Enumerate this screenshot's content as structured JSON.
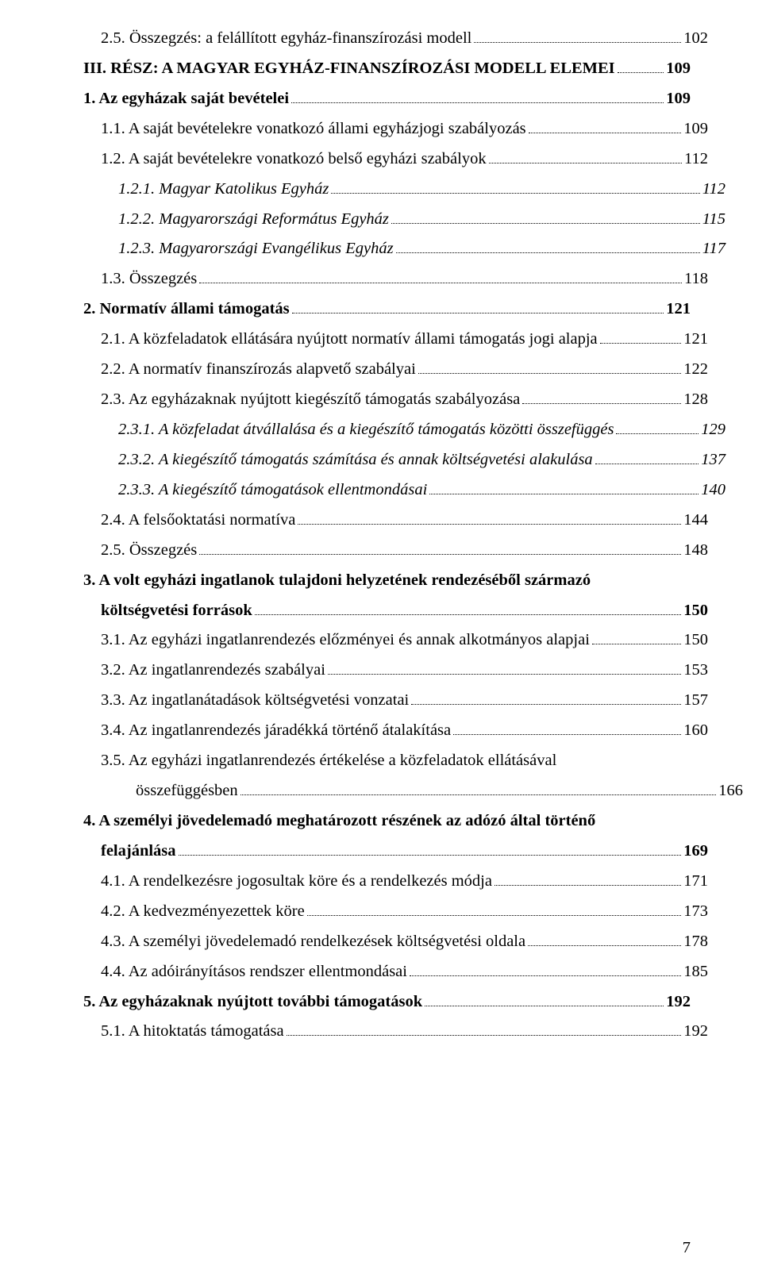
{
  "pageNumber": "7",
  "entries": [
    {
      "indent": 1,
      "bold": false,
      "italic": false,
      "text": "2.5. Összegzés: a felállított egyház-finanszírozási modell",
      "page": "102"
    },
    {
      "indent": 0,
      "bold": true,
      "italic": false,
      "text": "III. RÉSZ: A MAGYAR EGYHÁZ-FINANSZÍROZÁSI MODELL ELEMEI",
      "page": "109"
    },
    {
      "indent": 0,
      "bold": true,
      "italic": false,
      "text": "1. Az egyházak saját bevételei",
      "page": "109"
    },
    {
      "indent": 1,
      "bold": false,
      "italic": false,
      "text": "1.1. A saját bevételekre vonatkozó állami egyházjogi szabályozás",
      "page": "109"
    },
    {
      "indent": 1,
      "bold": false,
      "italic": false,
      "text": "1.2. A saját bevételekre vonatkozó belső egyházi szabályok",
      "page": "112"
    },
    {
      "indent": 2,
      "bold": false,
      "italic": true,
      "text": "1.2.1. Magyar Katolikus Egyház",
      "page": "112"
    },
    {
      "indent": 2,
      "bold": false,
      "italic": true,
      "text": "1.2.2. Magyarországi Református Egyház",
      "page": "115"
    },
    {
      "indent": 2,
      "bold": false,
      "italic": true,
      "text": "1.2.3. Magyarországi Evangélikus Egyház",
      "page": "117"
    },
    {
      "indent": 1,
      "bold": false,
      "italic": false,
      "text": "1.3. Összegzés",
      "page": "118"
    },
    {
      "indent": 0,
      "bold": true,
      "italic": false,
      "text": "2. Normatív állami támogatás",
      "page": "121"
    },
    {
      "indent": 1,
      "bold": false,
      "italic": false,
      "text": "2.1. A közfeladatok ellátására nyújtott normatív állami támogatás jogi alapja",
      "page": "121"
    },
    {
      "indent": 1,
      "bold": false,
      "italic": false,
      "text": "2.2. A normatív finanszírozás alapvető szabályai",
      "page": "122"
    },
    {
      "indent": 1,
      "bold": false,
      "italic": false,
      "text": "2.3. Az egyházaknak nyújtott kiegészítő támogatás szabályozása",
      "page": "128"
    },
    {
      "indent": 2,
      "bold": false,
      "italic": true,
      "text": "2.3.1. A közfeladat átvállalása és a kiegészítő támogatás közötti összefüggés",
      "page": "129"
    },
    {
      "indent": 2,
      "bold": false,
      "italic": true,
      "text": "2.3.2. A kiegészítő támogatás számítása és annak költségvetési alakulása",
      "page": "137"
    },
    {
      "indent": 2,
      "bold": false,
      "italic": true,
      "text": "2.3.3. A kiegészítő támogatások ellentmondásai",
      "page": "140"
    },
    {
      "indent": 1,
      "bold": false,
      "italic": false,
      "text": "2.4. A felsőoktatási normatíva",
      "page": "144"
    },
    {
      "indent": 1,
      "bold": false,
      "italic": false,
      "text": "2.5. Összegzés",
      "page": "148"
    },
    {
      "indent": 0,
      "bold": true,
      "italic": false,
      "wrap": true,
      "pre": "3. A volt egyházi ingatlanok tulajdoni helyzetének rendezéséből származó",
      "text": "költségvetési források",
      "page": "150"
    },
    {
      "indent": 1,
      "bold": false,
      "italic": false,
      "text": "3.1. Az egyházi ingatlanrendezés előzményei és annak alkotmányos alapjai",
      "page": "150"
    },
    {
      "indent": 1,
      "bold": false,
      "italic": false,
      "text": "3.2. Az ingatlanrendezés szabályai",
      "page": "153"
    },
    {
      "indent": 1,
      "bold": false,
      "italic": false,
      "text": "3.3. Az ingatlanátadások költségvetési vonzatai",
      "page": "157"
    },
    {
      "indent": 1,
      "bold": false,
      "italic": false,
      "text": "3.4. Az ingatlanrendezés járadékká történő átalakítása",
      "page": "160"
    },
    {
      "indent": 1,
      "bold": false,
      "italic": false,
      "wrap": true,
      "pre": "3.5. Az egyházi ingatlanrendezés értékelése a közfeladatok ellátásával",
      "preIndent": 1,
      "text": "összefüggésben",
      "textIndent": 3,
      "page": "166"
    },
    {
      "indent": 0,
      "bold": true,
      "italic": false,
      "wrap": true,
      "pre": "4. A személyi jövedelemadó meghatározott részének az adózó által történő",
      "text": "felajánlása",
      "page": "169"
    },
    {
      "indent": 1,
      "bold": false,
      "italic": false,
      "text": "4.1. A rendelkezésre jogosultak köre és a rendelkezés módja",
      "page": "171"
    },
    {
      "indent": 1,
      "bold": false,
      "italic": false,
      "text": "4.2. A kedvezményezettek köre",
      "page": "173"
    },
    {
      "indent": 1,
      "bold": false,
      "italic": false,
      "text": "4.3. A személyi jövedelemadó rendelkezések költségvetési oldala",
      "page": "178"
    },
    {
      "indent": 1,
      "bold": false,
      "italic": false,
      "text": "4.4. Az adóirányításos rendszer ellentmondásai",
      "page": "185"
    },
    {
      "indent": 0,
      "bold": true,
      "italic": false,
      "text": "5. Az egyházaknak nyújtott további támogatások",
      "page": "192"
    },
    {
      "indent": 1,
      "bold": false,
      "italic": false,
      "text": "5.1. A hitoktatás támogatása",
      "page": "192"
    }
  ]
}
